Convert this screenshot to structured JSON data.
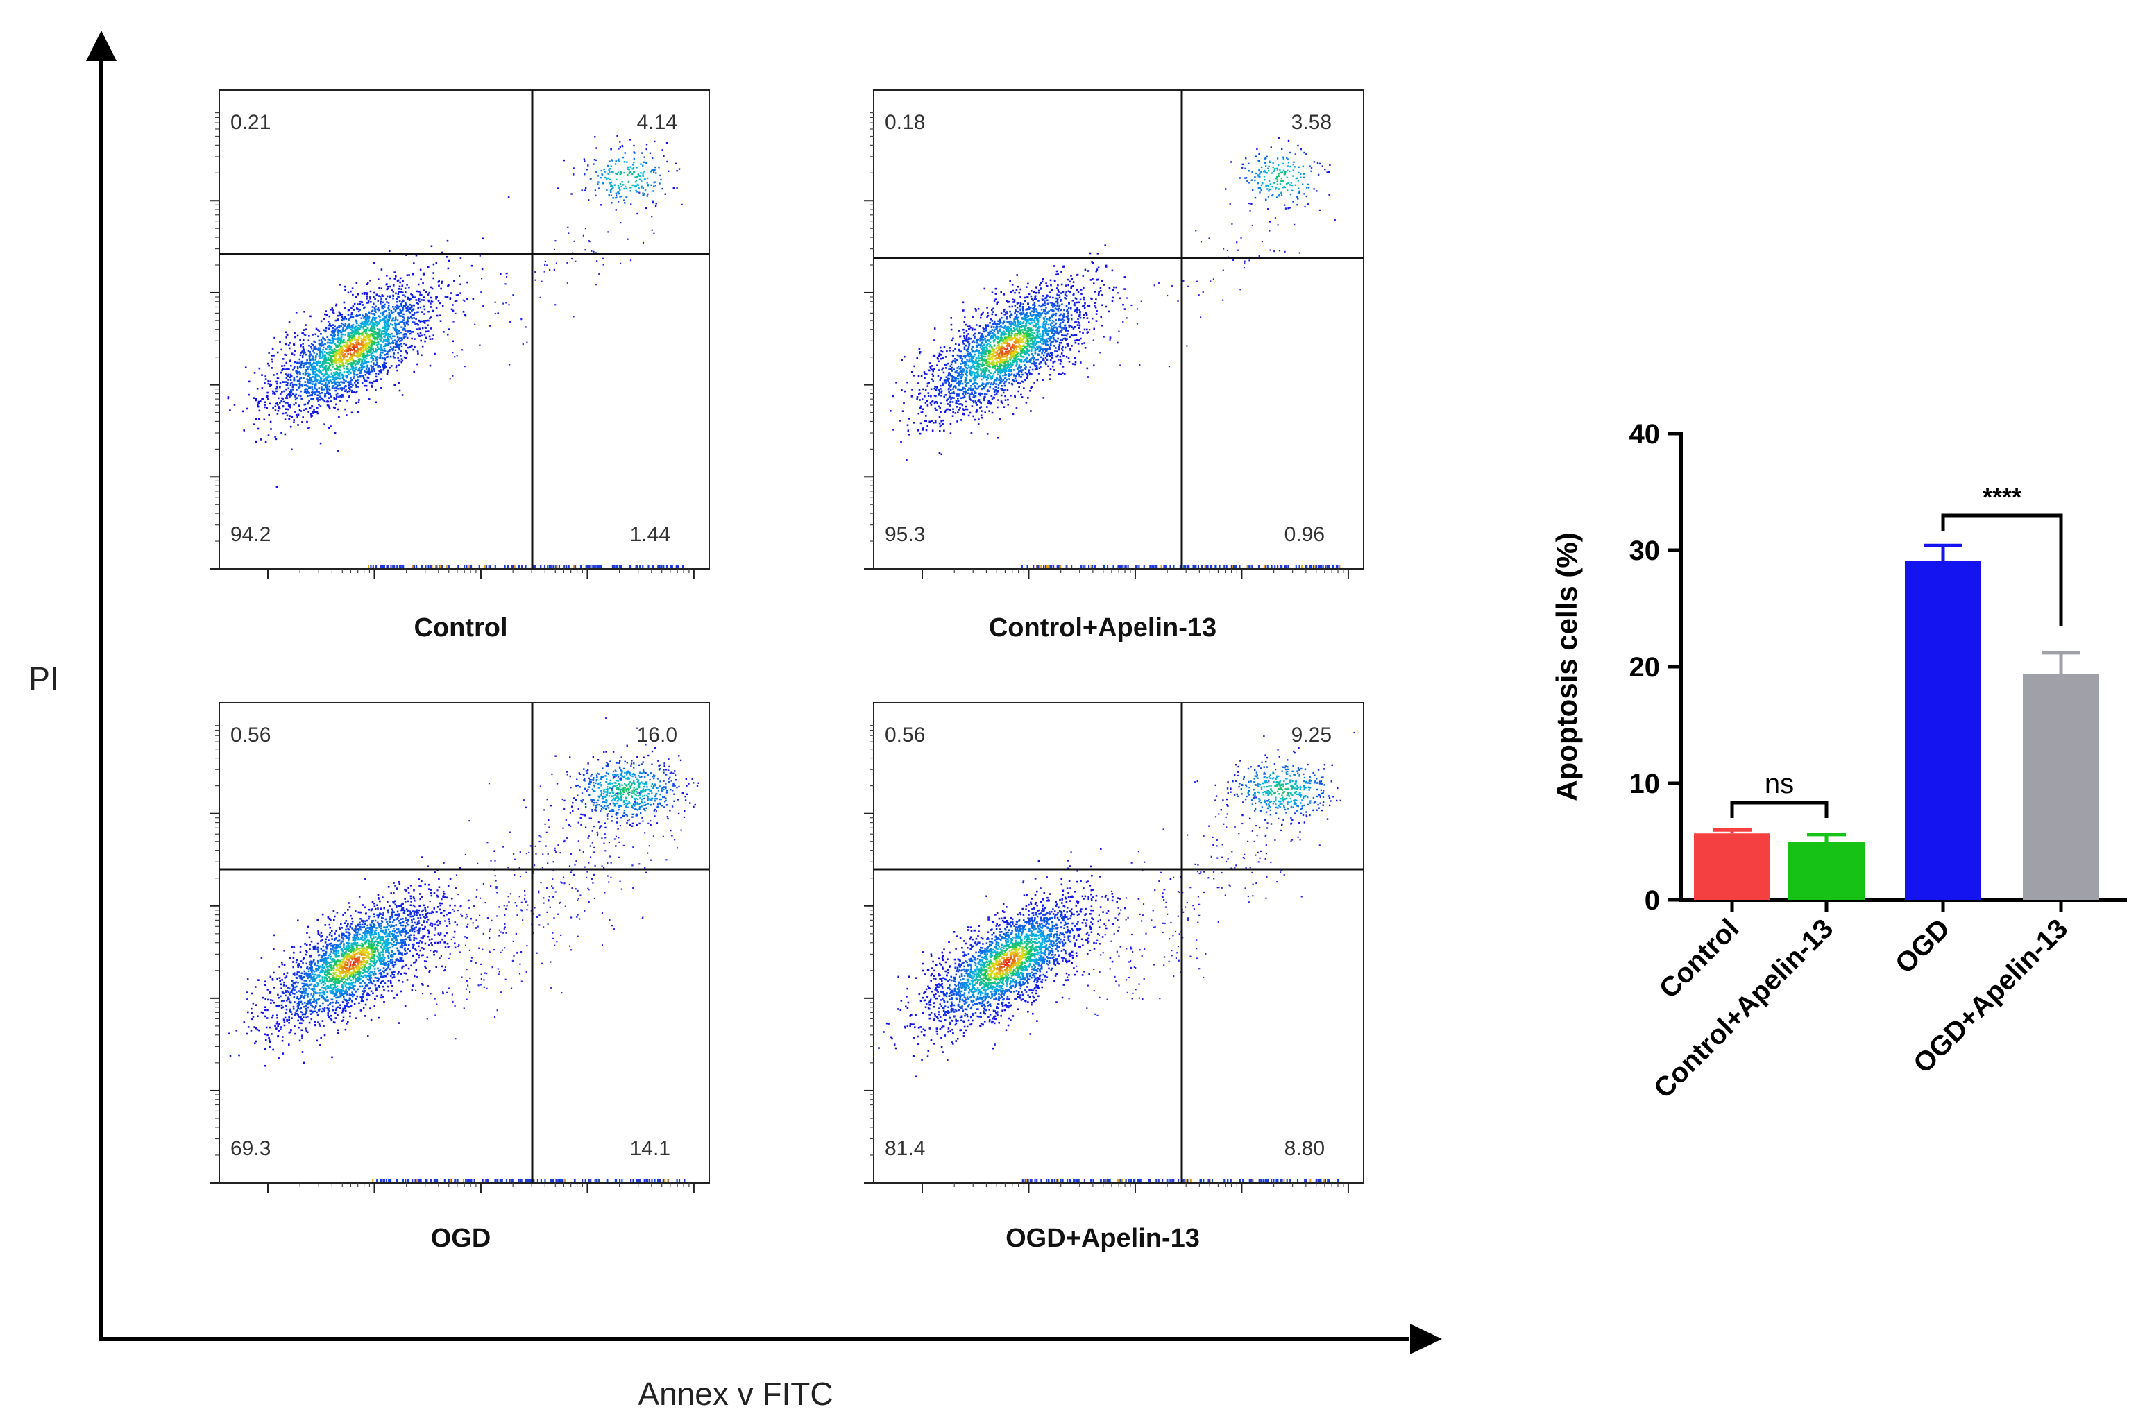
{
  "figure": {
    "axis_x_label": "Annex v FITC",
    "axis_y_label": "PI"
  },
  "chart_data": [
    {
      "type": "scatter",
      "subtype": "flow-cytometry-density-plot",
      "panels": [
        {
          "name": "Control",
          "quadrants": {
            "upper_left": "0.21",
            "upper_right": "4.14",
            "lower_left": "94.2",
            "lower_right": "1.44"
          }
        },
        {
          "name": "Control+Apelin-13",
          "quadrants": {
            "upper_left": "0.18",
            "upper_right": "3.58",
            "lower_left": "95.3",
            "lower_right": "0.96"
          }
        },
        {
          "name": "OGD",
          "quadrants": {
            "upper_left": "0.56",
            "upper_right": "16.0",
            "lower_left": "69.3",
            "lower_right": "14.1"
          }
        },
        {
          "name": "OGD+Apelin-13",
          "quadrants": {
            "upper_left": "0.56",
            "upper_right": "9.25",
            "lower_left": "81.4",
            "lower_right": "8.80"
          }
        }
      ],
      "xlabel": "Annex v FITC",
      "ylabel": "PI"
    },
    {
      "type": "bar",
      "title": "",
      "categories": [
        "Control",
        "Control+Apelin-13",
        "OGD",
        "OGD+Apelin-13"
      ],
      "values": [
        5.7,
        5.0,
        29.1,
        19.4
      ],
      "errors": [
        0.3,
        0.6,
        1.3,
        1.8
      ],
      "colors": [
        "#f44040",
        "#17c217",
        "#1414f0",
        "#a0a0a8"
      ],
      "ylabel": "Apoptosis cells (%)",
      "ylim": [
        0,
        40
      ],
      "yticks": [
        0,
        10,
        20,
        30,
        40
      ],
      "annotations": [
        {
          "between": [
            "Control",
            "Control+Apelin-13"
          ],
          "label": "ns"
        },
        {
          "between": [
            "OGD",
            "OGD+Apelin-13"
          ],
          "label": "****"
        }
      ]
    }
  ]
}
